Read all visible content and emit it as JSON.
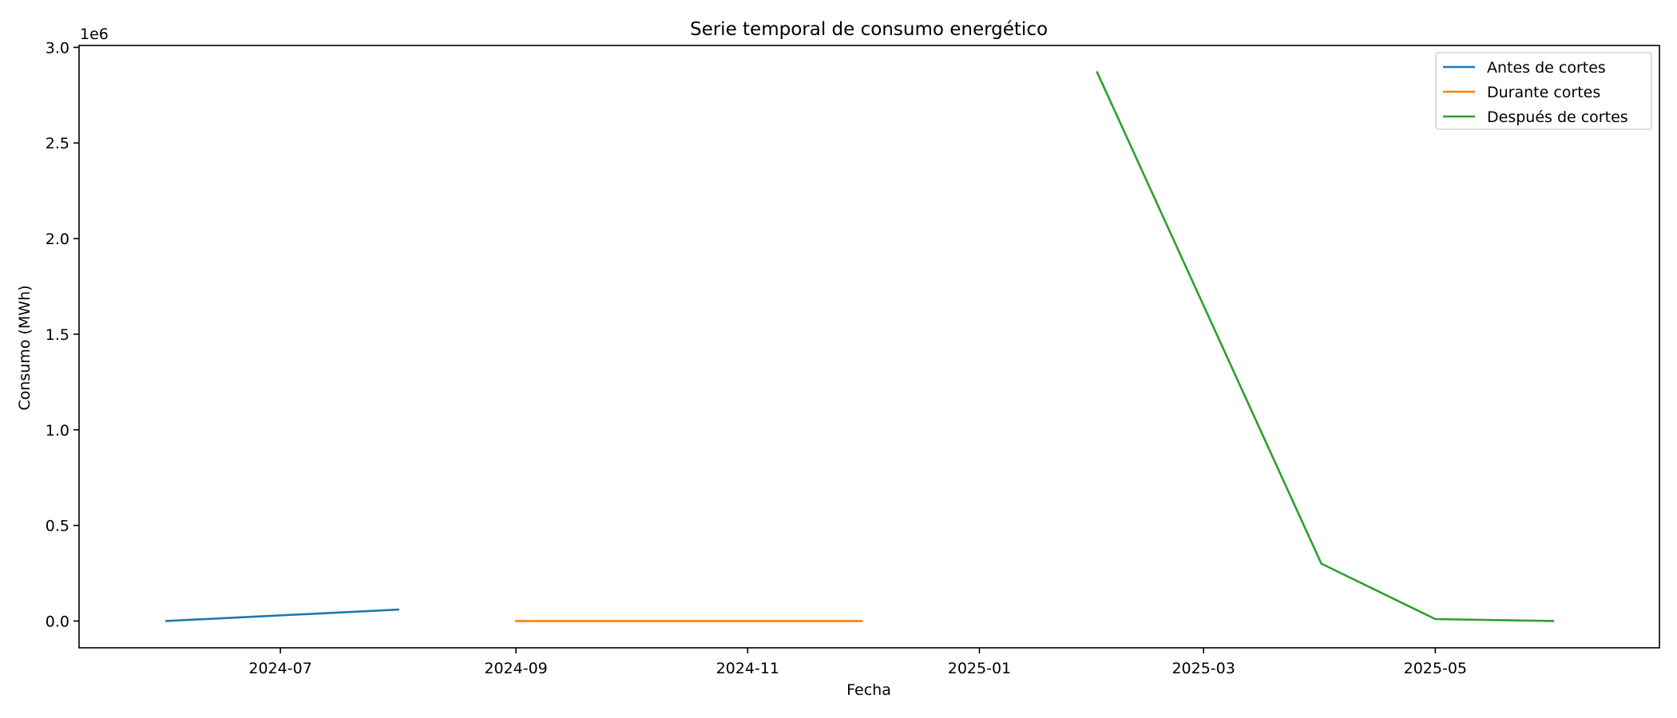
{
  "chart_data": {
    "type": "line",
    "title": "Serie temporal de consumo energético",
    "xlabel": "Fecha",
    "ylabel": "Consumo (MWh)",
    "y_multiplier_label": "1e6",
    "xlim": [
      "2024-05-09",
      "2025-06-29"
    ],
    "ylim": [
      -0.14,
      3.01
    ],
    "x_ticks": [
      "2024-07",
      "2024-09",
      "2024-11",
      "2025-01",
      "2025-03",
      "2025-05"
    ],
    "y_ticks": [
      "0.0",
      "0.5",
      "1.0",
      "1.5",
      "2.0",
      "2.5",
      "3.0"
    ],
    "grid": false,
    "legend_position": "upper right",
    "series": [
      {
        "name": "Antes de cortes",
        "color": "#1f77b4",
        "x": [
          "2024-06-01",
          "2024-08-01"
        ],
        "y": [
          0.0,
          0.06
        ]
      },
      {
        "name": "Durante cortes",
        "color": "#ff7f0e",
        "x": [
          "2024-09-01",
          "2024-10-01",
          "2024-11-01",
          "2024-12-01"
        ],
        "y": [
          0.0,
          0.0,
          0.0,
          0.0
        ]
      },
      {
        "name": "Después de cortes",
        "color": "#2ca02c",
        "x": [
          "2025-02-01",
          "2025-04-01",
          "2025-05-01",
          "2025-06-01"
        ],
        "y": [
          2.87,
          0.3,
          0.01,
          0.0
        ]
      }
    ]
  }
}
